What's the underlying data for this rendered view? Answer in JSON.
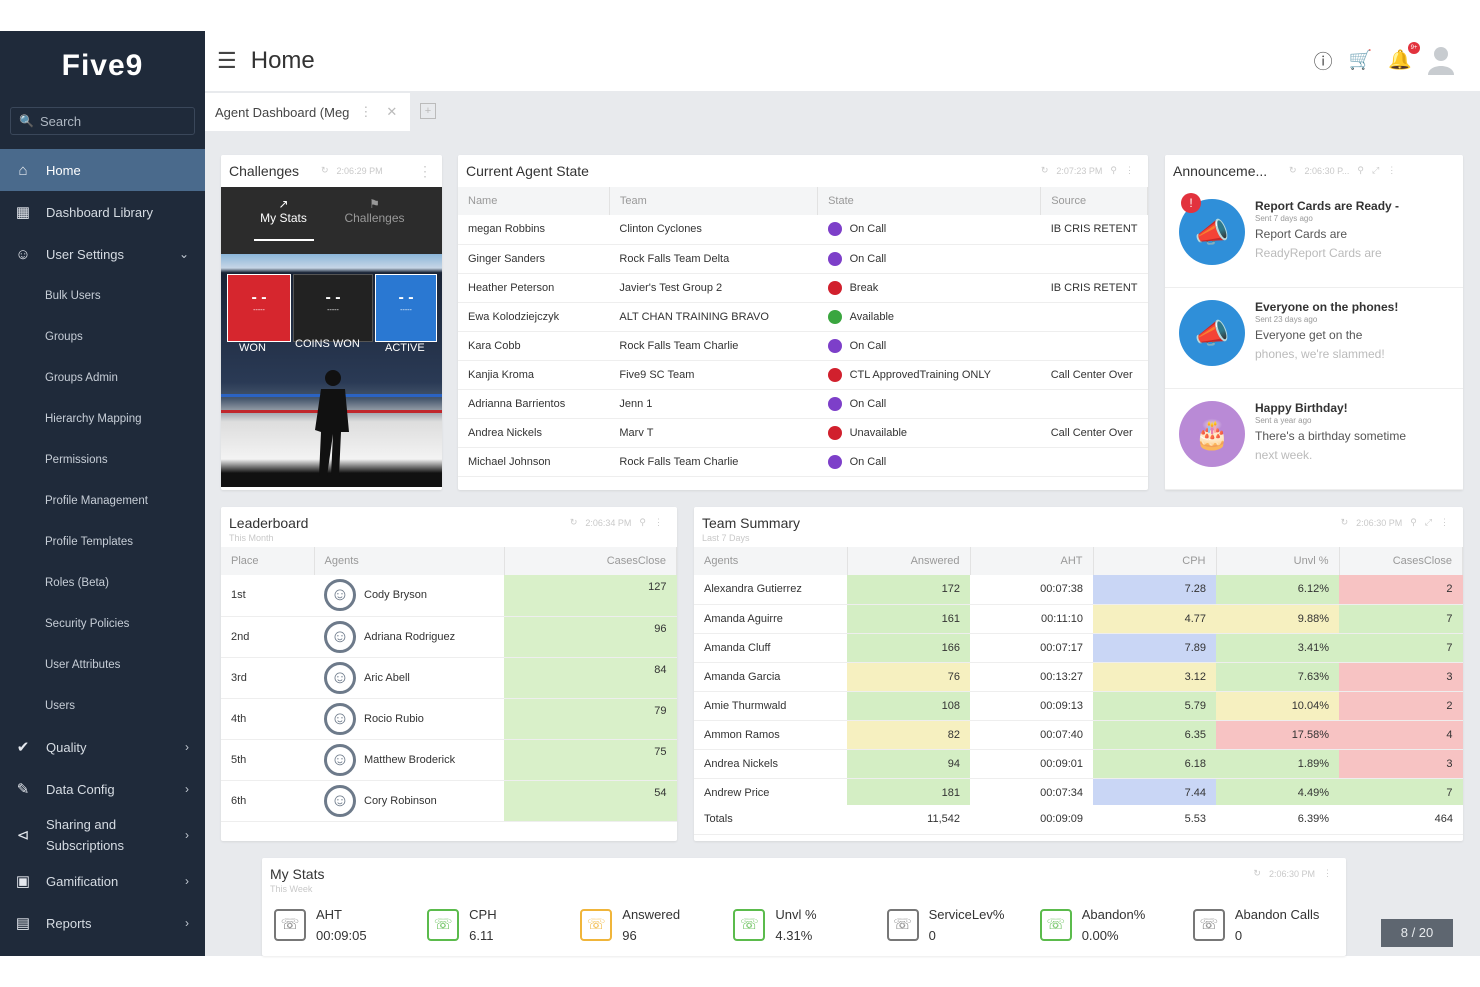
{
  "app": {
    "logo": "Five9",
    "search_placeholder": "Search"
  },
  "sidebar": {
    "items": [
      {
        "label": "Home",
        "icon": "home-icon"
      },
      {
        "label": "Dashboard Library",
        "icon": "dashboard-icon"
      },
      {
        "label": "User Settings",
        "icon": "user-icon"
      }
    ],
    "sub_items": [
      "Bulk Users",
      "Groups",
      "Groups Admin",
      "Hierarchy Mapping",
      "Permissions",
      "Profile Management",
      "Profile Templates",
      "Roles (Beta)",
      "Security Policies",
      "User Attributes",
      "Users"
    ],
    "bottom_items": [
      {
        "label": "Quality",
        "icon": "check-icon"
      },
      {
        "label": "Data Config",
        "icon": "data-config-icon"
      },
      {
        "label": "Sharing and Subscriptions",
        "icon": "share-icon"
      },
      {
        "label": "Gamification",
        "icon": "gamepad-icon"
      },
      {
        "label": "Reports",
        "icon": "clipboard-icon"
      }
    ]
  },
  "header": {
    "title": "Home",
    "notif_count": "9+"
  },
  "tabs": [
    {
      "label": "Agent Dashboard (Meg"
    }
  ],
  "challenges": {
    "title": "Challenges",
    "time": "2:06:29 PM",
    "tab_mystats": "My Stats",
    "tab_challenges": "Challenges",
    "boards": [
      {
        "label": "WON",
        "value": "- -",
        "sub": "-----"
      },
      {
        "label": "COINS WON",
        "value": "- -",
        "sub": "-----"
      },
      {
        "label": "ACTIVE",
        "value": "- -",
        "sub": "-----"
      }
    ]
  },
  "agent_state": {
    "title": "Current Agent State",
    "time": "2:07:23 PM",
    "columns": [
      "Name",
      "Team",
      "State",
      "Source"
    ],
    "rows": [
      {
        "name": "megan Robbins",
        "team": "Clinton Cyclones",
        "state": "On Call",
        "color": "#7d3fc9",
        "source": "IB CRIS RETENT"
      },
      {
        "name": "Ginger Sanders",
        "team": "Rock Falls Team Delta",
        "state": "On Call",
        "color": "#7d3fc9",
        "source": ""
      },
      {
        "name": "Heather Peterson",
        "team": "Javier's Test Group 2",
        "state": "Break",
        "color": "#d1202d",
        "source": "IB CRIS RETENT"
      },
      {
        "name": "Ewa Kolodziejczyk",
        "team": "ALT CHAN TRAINING BRAVO",
        "state": "Available",
        "color": "#3aa63f",
        "source": ""
      },
      {
        "name": "Kara Cobb",
        "team": "Rock Falls Team Charlie",
        "state": "On Call",
        "color": "#7d3fc9",
        "source": ""
      },
      {
        "name": "Kanjia Kroma",
        "team": "Five9 SC Team",
        "state": "CTL ApprovedTraining ONLY",
        "color": "#d1202d",
        "source": "Call Center Over"
      },
      {
        "name": "Adrianna Barrientos",
        "team": "Jenn 1",
        "state": "On Call",
        "color": "#7d3fc9",
        "source": ""
      },
      {
        "name": "Andrea Nickels",
        "team": "Marv T",
        "state": "Unavailable",
        "color": "#d1202d",
        "source": "Call Center Over"
      },
      {
        "name": "Michael Johnson",
        "team": "Rock Falls Team Charlie",
        "state": "On Call",
        "color": "#7d3fc9",
        "source": ""
      }
    ]
  },
  "announcements": {
    "title": "Announceme...",
    "time": "2:06:30 P...",
    "items": [
      {
        "title": "Report Cards are Ready -",
        "sent": "Sent 7 days ago",
        "body": "Report Cards are",
        "body2": "ReadyReport Cards are",
        "icon": "megaphone-icon",
        "alert": "!"
      },
      {
        "title": "Everyone on the phones!",
        "sent": "Sent 23 days ago",
        "body": "Everyone get on the",
        "body2": "phones, we're slammed!",
        "icon": "megaphone-icon"
      },
      {
        "title": "Happy Birthday!",
        "sent": "Sent a year ago",
        "body": "There's a birthday sometime",
        "body2": "next week.",
        "icon": "cake-icon"
      }
    ]
  },
  "leaderboard": {
    "title": "Leaderboard",
    "subtitle": "This Month",
    "time": "2:06:34 PM",
    "columns": [
      "Place",
      "Agents",
      "CasesClose"
    ],
    "rows": [
      {
        "place": "1st",
        "agent": "Cody Bryson",
        "value": "127"
      },
      {
        "place": "2nd",
        "agent": "Adriana Rodriguez",
        "value": "96"
      },
      {
        "place": "3rd",
        "agent": "Aric Abell",
        "value": "84"
      },
      {
        "place": "4th",
        "agent": "Rocio Rubio",
        "value": "79"
      },
      {
        "place": "5th",
        "agent": "Matthew Broderick",
        "value": "75"
      },
      {
        "place": "6th",
        "agent": "Cory Robinson",
        "value": "54"
      }
    ]
  },
  "team_summary": {
    "title": "Team Summary",
    "subtitle": "Last 7 Days",
    "time": "2:06:30 PM",
    "columns": [
      "Agents",
      "Answered",
      "AHT",
      "CPH",
      "Unvl %",
      "CasesClose"
    ],
    "rows": [
      {
        "agent": "Alexandra Gutierrez",
        "answered": "172",
        "aht": "00:07:38",
        "cph": "7.28",
        "unvl": "6.12%",
        "cases": "2",
        "c": [
          "#d4eec4",
          "#fff",
          "#c9d6f5",
          "#d4eec4",
          "#f7c3c3"
        ]
      },
      {
        "agent": "Amanda Aguirre",
        "answered": "161",
        "aht": "00:11:10",
        "cph": "4.77",
        "unvl": "9.88%",
        "cases": "7",
        "c": [
          "#d4eec4",
          "#fff",
          "#f6f0c0",
          "#f6f0c0",
          "#d4eec4"
        ]
      },
      {
        "agent": "Amanda Cluff",
        "answered": "166",
        "aht": "00:07:17",
        "cph": "7.89",
        "unvl": "3.41%",
        "cases": "7",
        "c": [
          "#d4eec4",
          "#fff",
          "#c9d6f5",
          "#d4eec4",
          "#d4eec4"
        ]
      },
      {
        "agent": "Amanda Garcia",
        "answered": "76",
        "aht": "00:13:27",
        "cph": "3.12",
        "unvl": "7.63%",
        "cases": "3",
        "c": [
          "#f6f0c0",
          "#fff",
          "#f6f0c0",
          "#d4eec4",
          "#f7c3c3"
        ]
      },
      {
        "agent": "Amie Thurmwald",
        "answered": "108",
        "aht": "00:09:13",
        "cph": "5.79",
        "unvl": "10.04%",
        "cases": "2",
        "c": [
          "#d4eec4",
          "#fff",
          "#d4eec4",
          "#f6f0c0",
          "#f7c3c3"
        ]
      },
      {
        "agent": "Ammon Ramos",
        "answered": "82",
        "aht": "00:07:40",
        "cph": "6.35",
        "unvl": "17.58%",
        "cases": "4",
        "c": [
          "#f6f0c0",
          "#fff",
          "#d4eec4",
          "#f7c3c3",
          "#f7c3c3"
        ]
      },
      {
        "agent": "Andrea Nickels",
        "answered": "94",
        "aht": "00:09:01",
        "cph": "6.18",
        "unvl": "1.89%",
        "cases": "3",
        "c": [
          "#d4eec4",
          "#fff",
          "#d4eec4",
          "#d4eec4",
          "#f7c3c3"
        ]
      },
      {
        "agent": "Andrew Price",
        "answered": "181",
        "aht": "00:07:34",
        "cph": "7.44",
        "unvl": "4.49%",
        "cases": "7",
        "c": [
          "#d4eec4",
          "#fff",
          "#c9d6f5",
          "#d4eec4",
          "#d4eec4"
        ]
      }
    ],
    "totals": {
      "label": "Totals",
      "answered": "11,542",
      "aht": "00:09:09",
      "cph": "5.53",
      "unvl": "6.39%",
      "cases": "464"
    }
  },
  "my_stats": {
    "title": "My Stats",
    "subtitle": "This Week",
    "time": "2:06:30 PM",
    "stats": [
      {
        "label": "AHT",
        "value": "00:09:05",
        "color": "#777",
        "icon": "phone-clock-icon"
      },
      {
        "label": "CPH",
        "value": "6.11",
        "color": "#5bbb4c",
        "icon": "phone-icon"
      },
      {
        "label": "Answered",
        "value": "96",
        "color": "#f0b53a",
        "icon": "chart-icon"
      },
      {
        "label": "Unvl %",
        "value": "4.31%",
        "color": "#5bbb4c",
        "icon": "unavailable-icon"
      },
      {
        "label": "ServiceLev%",
        "value": "0",
        "color": "#777",
        "icon": "service-icon"
      },
      {
        "label": "Abandon%",
        "value": "0.00%",
        "color": "#5bbb4c",
        "icon": "abandon-icon"
      },
      {
        "label": "Abandon Calls",
        "value": "0",
        "color": "#777",
        "icon": "abandon-calls-icon"
      }
    ]
  },
  "pager": "8 / 20"
}
